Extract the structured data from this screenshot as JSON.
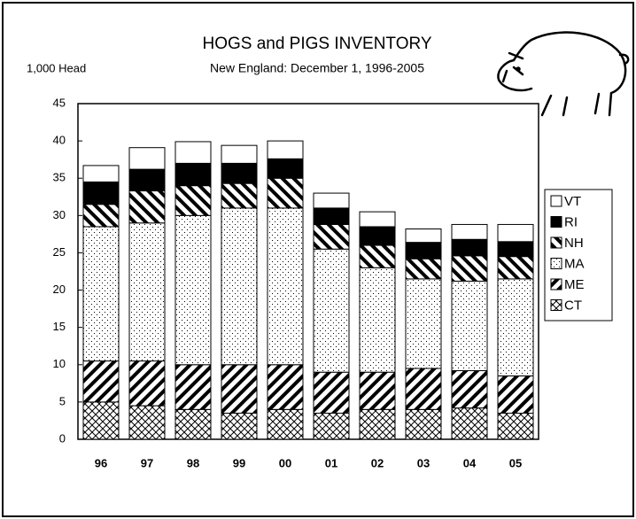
{
  "chart_data": {
    "type": "stacked_bar",
    "title": "HOGS and PIGS INVENTORY",
    "subtitle": "New England: December 1, 1996-2005",
    "y_label": "1,000 Head",
    "categories": [
      "96",
      "97",
      "98",
      "99",
      "00",
      "01",
      "02",
      "03",
      "04",
      "05"
    ],
    "series": [
      {
        "name": "CT",
        "color": "#000000",
        "pattern": "crosshatch",
        "values": [
          5,
          4.5,
          4,
          3.5,
          4,
          3.5,
          4,
          4,
          4.2,
          3.5
        ]
      },
      {
        "name": "ME",
        "color": "#000000",
        "pattern": "diagonal",
        "values": [
          5.5,
          6,
          6,
          6.5,
          6,
          5.5,
          5,
          5.5,
          5,
          5
        ]
      },
      {
        "name": "MA",
        "color": "#000000",
        "pattern": "dots",
        "values": [
          18,
          18.5,
          20,
          21,
          21,
          16.5,
          14,
          12,
          12,
          13
        ]
      },
      {
        "name": "NH",
        "color": "#000000",
        "pattern": "backdiagonal",
        "values": [
          3,
          4.3,
          4,
          3.3,
          4,
          3.3,
          3,
          2.7,
          3.4,
          3
        ]
      },
      {
        "name": "RI",
        "color": "#000000",
        "pattern": "solid",
        "values": [
          3,
          2.9,
          3,
          2.7,
          2.6,
          2.2,
          2.5,
          2.2,
          2.2,
          2
        ]
      },
      {
        "name": "VT",
        "color": "#ffffff",
        "pattern": "none",
        "values": [
          2.2,
          2.9,
          2.9,
          2.4,
          2.4,
          2,
          2,
          1.8,
          2,
          2.3
        ]
      }
    ],
    "ylim": [
      0,
      45
    ],
    "yticks": [
      0,
      5,
      10,
      15,
      20,
      25,
      30,
      35,
      40,
      45
    ],
    "legend": "right"
  }
}
